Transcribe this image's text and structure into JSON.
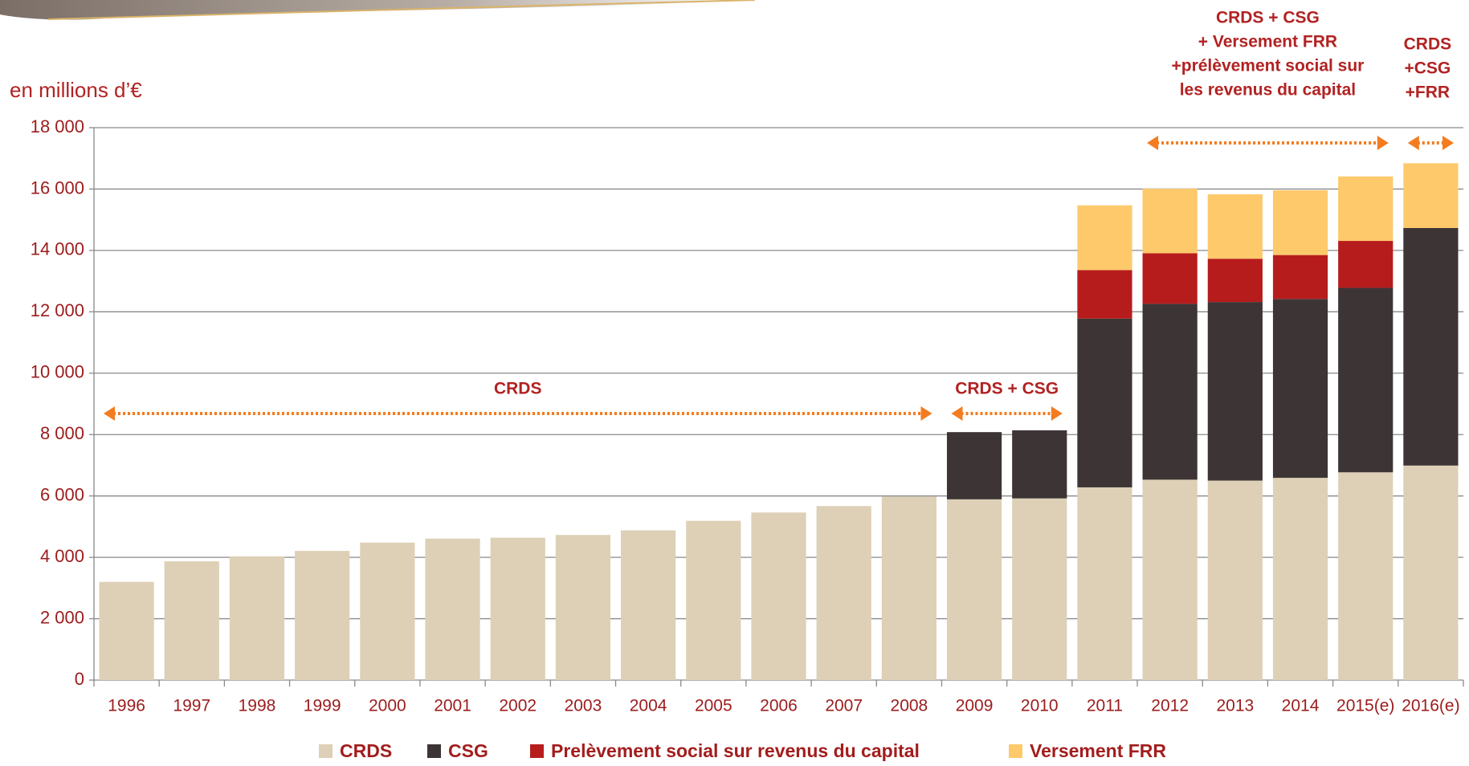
{
  "chart_data": {
    "type": "stacked_bar",
    "y_label": "en millions d’€",
    "categories": [
      "1996",
      "1997",
      "1998",
      "1999",
      "2000",
      "2001",
      "2002",
      "2003",
      "2004",
      "2005",
      "2006",
      "2007",
      "2008",
      "2009",
      "2010",
      "2011",
      "2012",
      "2013",
      "2014",
      "2015(e)",
      "2016(e)"
    ],
    "series": [
      {
        "name": "CRDS",
        "color": "#ddd0b6",
        "values": [
          3200,
          3870,
          4030,
          4210,
          4480,
          4610,
          4640,
          4730,
          4880,
          5190,
          5460,
          5670,
          5980,
          5890,
          5920,
          6280,
          6530,
          6500,
          6590,
          6770,
          6990
        ]
      },
      {
        "name": "CSG",
        "color": "#3d3535",
        "values": [
          null,
          null,
          null,
          null,
          null,
          null,
          null,
          null,
          null,
          null,
          null,
          null,
          null,
          2190,
          2220,
          5500,
          5730,
          5820,
          5830,
          6010,
          7740
        ]
      },
      {
        "name": "Prelèvement social sur revenus du capital",
        "color": "#b71c1c",
        "values": [
          null,
          null,
          null,
          null,
          null,
          null,
          null,
          null,
          null,
          null,
          null,
          null,
          null,
          null,
          null,
          1580,
          1650,
          1410,
          1430,
          1530,
          null
        ]
      },
      {
        "name": "Versement FRR",
        "color": "#fdc96a",
        "values": [
          null,
          null,
          null,
          null,
          null,
          null,
          null,
          null,
          null,
          null,
          null,
          null,
          null,
          null,
          null,
          2110,
          2100,
          2100,
          2110,
          2100,
          2110
        ]
      }
    ],
    "ylim": [
      0,
      18000
    ],
    "yticks": [
      0,
      {
        "value": 2000,
        "label": "2 000"
      },
      {
        "value": 4000,
        "label": "4 000"
      },
      {
        "value": 6000,
        "label": "6 000"
      },
      {
        "value": 8000,
        "label": "8 000"
      },
      {
        "value": 10000,
        "label": "10 000"
      },
      {
        "value": 12000,
        "label": "12 000"
      },
      {
        "value": 14000,
        "label": "14 000"
      },
      {
        "value": 16000,
        "label": "16 000"
      },
      {
        "value": 18000,
        "label": "18 000"
      }
    ],
    "grid": true,
    "annotations": [
      {
        "lines": [
          "CRDS"
        ]
      },
      {
        "lines": [
          "CRDS + CSG"
        ]
      },
      {
        "lines": [
          "CRDS + CSG",
          "+ Versement FRR",
          "+prélèvement social sur",
          "les revenus du capital"
        ]
      },
      {
        "lines": [
          "CRDS",
          "+CSG",
          "+FRR"
        ]
      }
    ]
  }
}
